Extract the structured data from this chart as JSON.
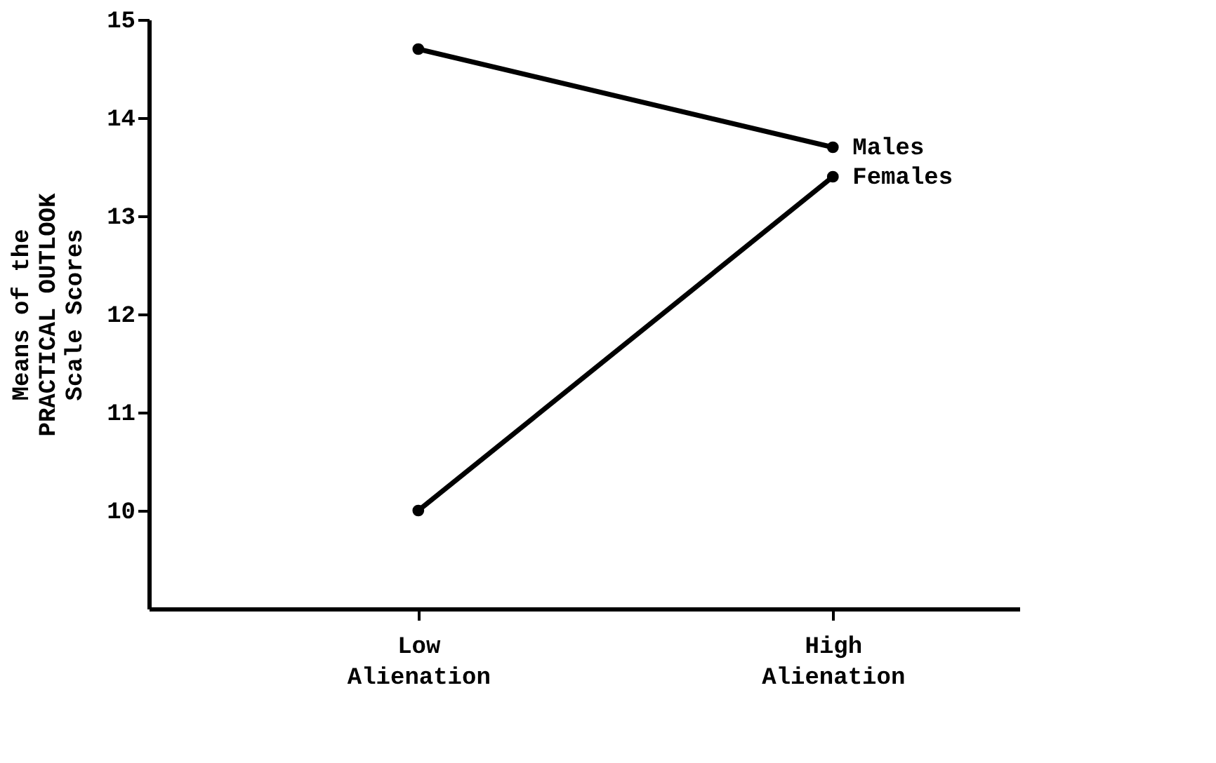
{
  "chart_data": {
    "type": "line",
    "ylabel": "Means of the\nPRACTICAL OUTLOOK\nScale Scores",
    "categories": [
      "Low Alienation",
      "High Alienation"
    ],
    "series": [
      {
        "name": "Males",
        "color": "#000000",
        "values": [
          14.7,
          13.7
        ]
      },
      {
        "name": "Females",
        "color": "#000000",
        "values": [
          10.0,
          13.4
        ]
      }
    ],
    "ylim": [
      9,
      15
    ],
    "yticks": [
      10,
      11,
      12,
      13,
      14,
      15
    ],
    "grid": false,
    "marker": "circle",
    "line_style": "solid"
  }
}
